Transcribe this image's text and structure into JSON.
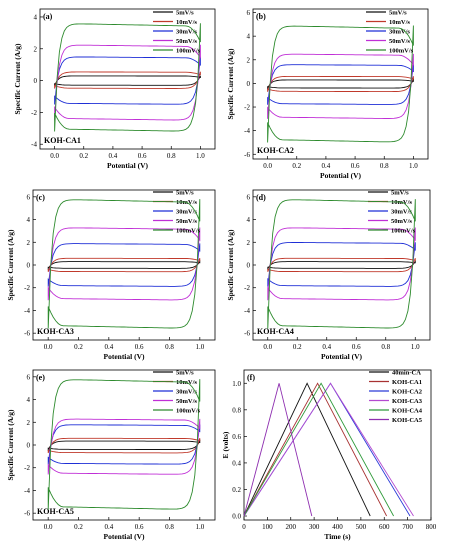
{
  "colors": {
    "5mV/s": "#111111",
    "10mV/s": "#c0392b",
    "30mV/s": "#1f2fd6",
    "50mV/s": "#c02fd6",
    "100mV/s": "#2e8b2e",
    "40min-CA": "#111111",
    "KOH-CA1": "#a83232",
    "KOH-CA2": "#2a3bd8",
    "KOH-CA3": "#b44ad0",
    "KOH-CA4": "#2f9a3a",
    "KOH-CA5": "#8e2fb0"
  },
  "chart_data": [
    {
      "type": "line",
      "panel": "(a)",
      "sample_label": "KOH-CA1",
      "xlabel": "Potential (V)",
      "ylabel": "Specific Current (A/g)",
      "xlim": [
        -0.1,
        1.1
      ],
      "ylim": [
        -4.3,
        4.5
      ],
      "xticks": [
        "0.0",
        "0.2",
        "0.4",
        "0.6",
        "0.8",
        "1.0"
      ],
      "yticks": [
        "-4",
        "-2",
        "0",
        "2",
        "4"
      ],
      "series": [
        {
          "name": "5mV/s",
          "anodic": 0.3,
          "cathodic": -0.3
        },
        {
          "name": "10mV/s",
          "anodic": 0.55,
          "cathodic": -0.5
        },
        {
          "name": "30mV/s",
          "anodic": 1.5,
          "cathodic": -1.5
        },
        {
          "name": "50mV/s",
          "anodic": 2.25,
          "cathodic": -2.5
        },
        {
          "name": "100mV/s",
          "anodic": 3.6,
          "cathodic": -3.2
        }
      ]
    },
    {
      "type": "line",
      "panel": "(b)",
      "sample_label": "KOH-CA2",
      "xlabel": "Potential (V)",
      "ylabel": "Specific Current (A/g)",
      "xlim": [
        -0.1,
        1.1
      ],
      "ylim": [
        -6.4,
        6.3
      ],
      "xticks": [
        "0.0",
        "0.2",
        "0.4",
        "0.6",
        "0.8",
        "1.0"
      ],
      "yticks": [
        "-6",
        "-4",
        "-2",
        "0",
        "2",
        "4",
        "6"
      ],
      "series": [
        {
          "name": "5mV/s",
          "anodic": 0.3,
          "cathodic": -0.4
        },
        {
          "name": "10mV/s",
          "anodic": 0.6,
          "cathodic": -0.7
        },
        {
          "name": "30mV/s",
          "anodic": 1.6,
          "cathodic": -1.8
        },
        {
          "name": "50mV/s",
          "anodic": 2.5,
          "cathodic": -3.0
        },
        {
          "name": "100mV/s",
          "anodic": 4.9,
          "cathodic": -5.0
        }
      ]
    },
    {
      "type": "line",
      "panel": "(c)",
      "sample_label": "KOH-CA3",
      "xlabel": "Potential (V)",
      "ylabel": "Specific Current (A/g)",
      "xlim": [
        -0.1,
        1.1
      ],
      "ylim": [
        -6.6,
        6.6
      ],
      "xticks": [
        "0.0",
        "0.2",
        "0.4",
        "0.6",
        "0.8",
        "1.0"
      ],
      "yticks": [
        "-6",
        "-4",
        "-2",
        "0",
        "2",
        "4",
        "6"
      ],
      "series": [
        {
          "name": "5mV/s",
          "anodic": 0.3,
          "cathodic": -0.3
        },
        {
          "name": "10mV/s",
          "anodic": 0.6,
          "cathodic": -0.6
        },
        {
          "name": "30mV/s",
          "anodic": 1.9,
          "cathodic": -1.9
        },
        {
          "name": "50mV/s",
          "anodic": 3.3,
          "cathodic": -3.1
        },
        {
          "name": "100mV/s",
          "anodic": 5.8,
          "cathodic": -5.6
        }
      ]
    },
    {
      "type": "line",
      "panel": "(d)",
      "sample_label": "KOH-CA4",
      "xlabel": "Potential (V)",
      "ylabel": "Specific Current (A/g)",
      "xlim": [
        -0.1,
        1.1
      ],
      "ylim": [
        -6.6,
        6.6
      ],
      "xticks": [
        "0.0",
        "0.2",
        "0.4",
        "0.6",
        "0.8",
        "1.0"
      ],
      "yticks": [
        "-6",
        "-4",
        "-2",
        "0",
        "2",
        "4",
        "6"
      ],
      "series": [
        {
          "name": "5mV/s",
          "anodic": 0.3,
          "cathodic": -0.3
        },
        {
          "name": "10mV/s",
          "anodic": 0.6,
          "cathodic": -0.6
        },
        {
          "name": "30mV/s",
          "anodic": 2.0,
          "cathodic": -1.9
        },
        {
          "name": "50mV/s",
          "anodic": 3.3,
          "cathodic": -3.1
        },
        {
          "name": "100mV/s",
          "anodic": 5.8,
          "cathodic": -5.6
        }
      ]
    },
    {
      "type": "line",
      "panel": "(e)",
      "sample_label": "KOH-CA5",
      "xlabel": "Potential (V)",
      "ylabel": "Specific Current (A/g)",
      "xlim": [
        -0.1,
        1.1
      ],
      "ylim": [
        -6.6,
        6.6
      ],
      "xticks": [
        "0.0",
        "0.2",
        "0.4",
        "0.6",
        "0.8",
        "1.0"
      ],
      "yticks": [
        "-6",
        "-4",
        "-2",
        "0",
        "2",
        "4",
        "6"
      ],
      "series": [
        {
          "name": "5mV/s",
          "anodic": 0.35,
          "cathodic": -0.4
        },
        {
          "name": "10mV/s",
          "anodic": 0.6,
          "cathodic": -0.7
        },
        {
          "name": "30mV/s",
          "anodic": 1.8,
          "cathodic": -1.7
        },
        {
          "name": "50mV/s",
          "anodic": 2.3,
          "cathodic": -2.6
        },
        {
          "name": "100mV/s",
          "anodic": 5.8,
          "cathodic": -5.7
        }
      ]
    },
    {
      "type": "line",
      "panel": "(f)",
      "xlabel": "Time (s)",
      "ylabel": "E (volts)",
      "xlim": [
        0,
        800
      ],
      "ylim": [
        -0.03,
        1.1
      ],
      "xticks": [
        "0",
        "100",
        "200",
        "300",
        "400",
        "500",
        "600",
        "700",
        "800"
      ],
      "yticks": [
        "0.0",
        "0.2",
        "0.4",
        "0.6",
        "0.8",
        "1.0"
      ],
      "series": [
        {
          "name": "40min-CA",
          "x": [
            0,
            270,
            540
          ],
          "y": [
            0,
            1.0,
            0
          ]
        },
        {
          "name": "KOH-CA1",
          "x": [
            0,
            315,
            610
          ],
          "y": [
            0,
            1.0,
            0
          ]
        },
        {
          "name": "KOH-CA2",
          "x": [
            0,
            370,
            710
          ],
          "y": [
            0,
            1.0,
            0
          ]
        },
        {
          "name": "KOH-CA3",
          "x": [
            0,
            370,
            725
          ],
          "y": [
            0,
            1.0,
            0
          ]
        },
        {
          "name": "KOH-CA4",
          "x": [
            0,
            330,
            640
          ],
          "y": [
            0,
            1.0,
            0
          ]
        },
        {
          "name": "KOH-CA5",
          "x": [
            0,
            150,
            290
          ],
          "y": [
            0,
            1.0,
            0
          ]
        }
      ]
    }
  ]
}
